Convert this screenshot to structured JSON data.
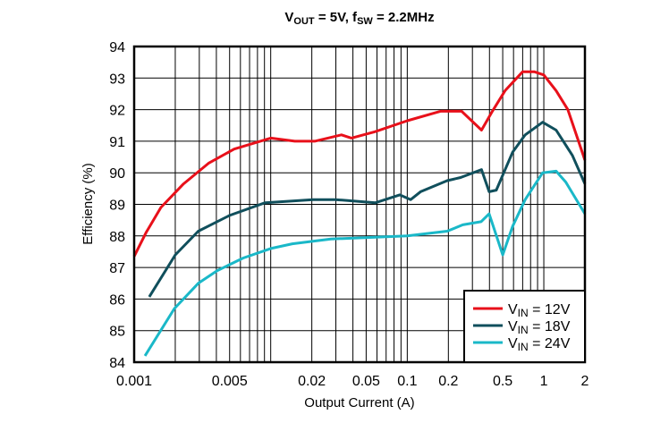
{
  "chart_data": {
    "type": "line",
    "title": {
      "main": "V",
      "sub1": "OUT",
      "mid": " = 5V, f",
      "sub2": "SW",
      "end": " = 2.2MHz"
    },
    "xlabel": "Output Current (A)",
    "ylabel": "Efficiency (%)",
    "xscale": "log",
    "xlim": [
      0.001,
      2
    ],
    "ylim": [
      84,
      94
    ],
    "grid": true,
    "legend_placement": "bottom-right",
    "xticks": [
      0.001,
      0.005,
      0.02,
      0.05,
      0.1,
      0.2,
      0.5,
      1,
      2
    ],
    "xtick_labels": [
      "0.001",
      "0.005",
      "0.02",
      "0.05",
      "0.1",
      "0.2",
      "0.5",
      "1",
      "2"
    ],
    "yticks": [
      84,
      85,
      86,
      87,
      88,
      89,
      90,
      91,
      92,
      93,
      94
    ],
    "ytick_labels": [
      "84",
      "85",
      "86",
      "87",
      "88",
      "89",
      "90",
      "91",
      "92",
      "93",
      "94"
    ],
    "series": [
      {
        "name": "V",
        "name_sub": "IN",
        "name_rest": " = 12V",
        "color": "#e8101a",
        "x": [
          0.001,
          0.00122,
          0.00157,
          0.0023,
          0.0035,
          0.0054,
          0.01,
          0.015,
          0.021,
          0.033,
          0.039,
          0.058,
          0.1,
          0.175,
          0.25,
          0.35,
          0.42,
          0.52,
          0.7,
          0.85,
          1.0,
          1.23,
          1.5,
          2.0
        ],
        "y": [
          87.35,
          88.1,
          88.9,
          89.65,
          90.3,
          90.75,
          91.1,
          91.0,
          91.0,
          91.2,
          91.1,
          91.3,
          91.65,
          91.95,
          91.95,
          91.35,
          91.95,
          92.6,
          93.2,
          93.2,
          93.1,
          92.6,
          92.0,
          90.4
        ]
      },
      {
        "name": "V",
        "name_sub": "IN",
        "name_rest": " = 18V",
        "color": "#104f5c",
        "x": [
          0.00129,
          0.002,
          0.00295,
          0.005,
          0.0091,
          0.0204,
          0.0297,
          0.0586,
          0.088,
          0.106,
          0.125,
          0.196,
          0.246,
          0.35,
          0.398,
          0.449,
          0.59,
          0.73,
          0.98,
          1.23,
          1.62,
          2.0
        ],
        "y": [
          86.07,
          87.4,
          88.15,
          88.65,
          89.05,
          89.15,
          89.15,
          89.05,
          89.3,
          89.15,
          89.4,
          89.75,
          89.85,
          90.1,
          89.4,
          89.45,
          90.65,
          91.2,
          91.6,
          91.35,
          90.55,
          89.65
        ]
      },
      {
        "name": "V",
        "name_sub": "IN",
        "name_rest": " = 24V",
        "color": "#1ab8c8",
        "x": [
          0.0012,
          0.00197,
          0.00295,
          0.00406,
          0.0063,
          0.01,
          0.0144,
          0.0276,
          0.1,
          0.196,
          0.255,
          0.347,
          0.398,
          0.5,
          0.59,
          0.73,
          0.98,
          1.23,
          1.45,
          2.0
        ],
        "y": [
          84.2,
          85.7,
          86.5,
          86.9,
          87.3,
          87.6,
          87.75,
          87.9,
          88.0,
          88.15,
          88.35,
          88.45,
          88.7,
          87.4,
          88.3,
          89.15,
          90.0,
          90.05,
          89.7,
          88.7
        ]
      }
    ]
  }
}
